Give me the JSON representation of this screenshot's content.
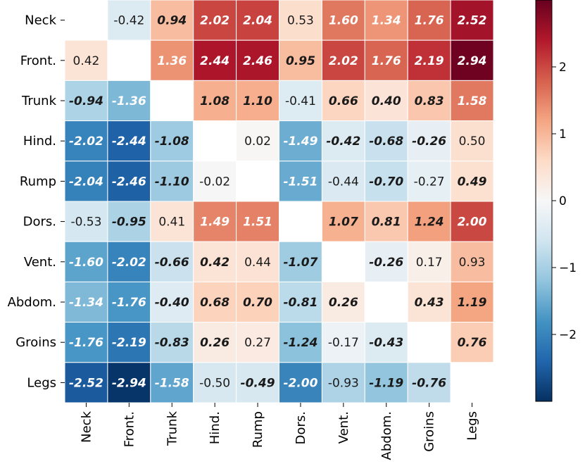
{
  "chart_data": {
    "type": "heatmap",
    "title": "",
    "xlabel": "",
    "ylabel": "",
    "rows": [
      "Neck",
      "Front.",
      "Trunk",
      "Hind.",
      "Rump",
      "Dors.",
      "Vent.",
      "Abdom.",
      "Groins",
      "Legs"
    ],
    "columns": [
      "Neck",
      "Front.",
      "Trunk",
      "Hind.",
      "Rump",
      "Dors.",
      "Vent.",
      "Abdom.",
      "Groins",
      "Legs"
    ],
    "values": [
      [
        null,
        -0.42,
        0.94,
        2.02,
        2.04,
        0.53,
        1.6,
        1.34,
        1.76,
        2.52
      ],
      [
        0.42,
        null,
        1.36,
        2.44,
        2.46,
        0.95,
        2.02,
        1.76,
        2.19,
        2.94
      ],
      [
        -0.94,
        -1.36,
        null,
        1.08,
        1.1,
        -0.41,
        0.66,
        0.4,
        0.83,
        1.58
      ],
      [
        -2.02,
        -2.44,
        -1.08,
        null,
        0.02,
        -1.49,
        -0.42,
        -0.68,
        -0.26,
        0.5
      ],
      [
        -2.04,
        -2.46,
        -1.1,
        -0.02,
        null,
        -1.51,
        -0.44,
        -0.7,
        -0.27,
        0.49
      ],
      [
        -0.53,
        -0.95,
        0.41,
        1.49,
        1.51,
        null,
        1.07,
        0.81,
        1.24,
        2.0
      ],
      [
        -1.6,
        -2.02,
        -0.66,
        0.42,
        0.44,
        -1.07,
        null,
        -0.26,
        0.17,
        0.93
      ],
      [
        -1.34,
        -1.76,
        -0.4,
        0.68,
        0.7,
        -0.81,
        0.26,
        null,
        0.43,
        1.19
      ],
      [
        -1.76,
        -2.19,
        -0.83,
        0.26,
        0.27,
        -1.24,
        -0.17,
        -0.43,
        null,
        0.76
      ],
      [
        -2.52,
        -2.94,
        -1.58,
        -0.5,
        -0.49,
        -2.0,
        -0.93,
        -1.19,
        -0.76,
        null
      ]
    ],
    "labels": [
      [
        null,
        "-0.42",
        "0.94",
        "2.02",
        "2.04",
        "0.53",
        "1.60",
        "1.34",
        "1.76",
        "2.52"
      ],
      [
        "0.42",
        null,
        "1.36",
        "2.44",
        "2.46",
        "0.95",
        "2.02",
        "1.76",
        "2.19",
        "2.94"
      ],
      [
        "-0.94",
        "-1.36",
        null,
        "1.08",
        "1.10",
        "-0.41",
        "0.66",
        "0.40",
        "0.83",
        "1.58"
      ],
      [
        "-2.02",
        "-2.44",
        "-1.08",
        null,
        "0.02",
        "-1.49",
        "-0.42",
        "-0.68",
        "-0.26",
        "0.50"
      ],
      [
        "-2.04",
        "-2.46",
        "-1.10",
        "-0.02",
        null,
        "-1.51",
        "-0.44",
        "-0.70",
        "-0.27",
        "0.49"
      ],
      [
        "-0.53",
        "-0.95",
        "0.41",
        "1.49",
        "1.51",
        null,
        "1.07",
        "0.81",
        "1.24",
        "2.00"
      ],
      [
        "-1.60",
        "-2.02",
        "-0.66",
        "0.42",
        "0.44",
        "-1.07",
        null,
        "-0.26",
        "0.17",
        "0.93"
      ],
      [
        "-1.34",
        "-1.76",
        "-0.40",
        "0.68",
        "0.70",
        "-0.81",
        "0.26",
        null,
        "0.43",
        "1.19"
      ],
      [
        "-1.76",
        "-2.19",
        "-0.83",
        "0.26",
        "0.27",
        "-1.24",
        "-0.17",
        "-0.43",
        null,
        "0.76"
      ],
      [
        "-2.52",
        "-2.94",
        "-1.58",
        "-0.50",
        "-0.49",
        "-2.00",
        "-0.93",
        "-1.19",
        "-0.76",
        null
      ]
    ],
    "bold": [
      [
        false,
        false,
        true,
        true,
        true,
        false,
        true,
        true,
        true,
        true
      ],
      [
        false,
        false,
        true,
        true,
        true,
        true,
        true,
        true,
        true,
        true
      ],
      [
        true,
        true,
        false,
        true,
        true,
        false,
        true,
        true,
        true,
        true
      ],
      [
        true,
        true,
        true,
        false,
        false,
        true,
        true,
        true,
        true,
        false
      ],
      [
        true,
        true,
        true,
        false,
        false,
        true,
        false,
        true,
        false,
        true
      ],
      [
        false,
        true,
        false,
        true,
        true,
        false,
        true,
        true,
        true,
        true
      ],
      [
        true,
        true,
        true,
        true,
        false,
        true,
        false,
        true,
        false,
        false
      ],
      [
        true,
        true,
        true,
        true,
        true,
        true,
        true,
        false,
        true,
        true
      ],
      [
        true,
        true,
        true,
        true,
        false,
        true,
        false,
        true,
        false,
        true
      ],
      [
        true,
        true,
        true,
        false,
        true,
        true,
        false,
        true,
        true,
        false
      ]
    ],
    "colormap": "RdBu_r",
    "vmin": -3.0,
    "vmax": 3.0,
    "colorbar": {
      "ticks": [
        2,
        1,
        0,
        -1,
        -2
      ],
      "tick_labels": [
        "2",
        "1",
        "0",
        "−1",
        "−2"
      ],
      "placement": "right"
    },
    "colors": {
      "diagonal": "#ffffff",
      "grid_line": "#ffffff",
      "text_dark": "#1a1a1a",
      "text_light": "#ffffff",
      "stops": [
        "#053061",
        "#2166ac",
        "#4393c3",
        "#92c5de",
        "#d1e5f0",
        "#f7f7f7",
        "#fddbc7",
        "#f4a582",
        "#d6604d",
        "#b2182b",
        "#67001f"
      ]
    }
  }
}
